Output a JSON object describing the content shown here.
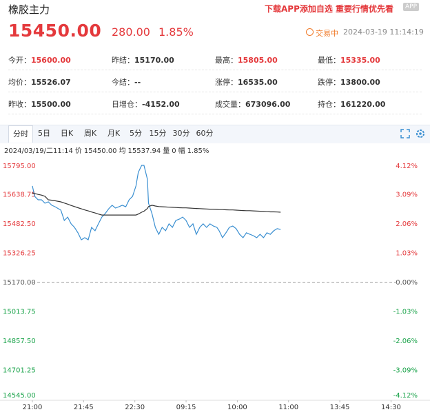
{
  "header": {
    "title": "橡胶主力",
    "promo": "下载APP添加自选 重要行情优先看",
    "badge": "APP"
  },
  "quote": {
    "price": "15450.00",
    "change": "280.00",
    "change_pct": "1.85%",
    "status": "交易中",
    "time": "2024-03-19 11:14:19"
  },
  "stats": [
    [
      {
        "label": "今开：",
        "value": "15600.00",
        "color": "#e4393c"
      },
      {
        "label": "昨结：",
        "value": "15170.00"
      },
      {
        "label": "最高：",
        "value": "15805.00",
        "color": "#e4393c"
      },
      {
        "label": "最低：",
        "value": "15335.00",
        "color": "#e4393c"
      }
    ],
    [
      {
        "label": "均价：",
        "value": "15526.07"
      },
      {
        "label": "今结：",
        "value": "--"
      },
      {
        "label": "涨停：",
        "value": "16535.00"
      },
      {
        "label": "跌停：",
        "value": "13800.00"
      }
    ],
    [
      {
        "label": "昨收：",
        "value": "15500.00"
      },
      {
        "label": "日增仓：",
        "value": "-4152.00"
      },
      {
        "label": "成交量：",
        "value": "673096.00"
      },
      {
        "label": "持仓：",
        "value": "161220.00"
      }
    ]
  ],
  "tabs": [
    "分时",
    "5日",
    "日K",
    "周K",
    "月K",
    "5分",
    "15分",
    "30分",
    "60分"
  ],
  "active_tab": 0,
  "info": [
    "2024/03/19/二11:14",
    "价",
    "15450.00",
    "均",
    "15537.94",
    "量",
    "0",
    "幅",
    "1.85%"
  ],
  "chart_data": {
    "type": "line",
    "x": [
      0,
      2,
      5,
      8,
      11,
      14,
      17,
      20,
      25,
      28,
      31,
      34,
      37,
      40,
      43,
      46,
      49,
      52,
      55,
      58,
      61,
      64,
      67,
      70,
      73,
      76,
      79,
      82,
      85,
      88,
      91,
      93,
      96,
      98,
      101,
      102,
      105,
      108,
      111,
      114,
      117,
      120,
      123,
      126,
      129,
      132,
      135,
      138,
      141,
      144,
      147,
      150,
      153,
      156,
      159,
      162,
      164,
      167,
      170,
      173,
      176,
      179,
      182,
      185,
      188,
      191,
      194,
      197,
      200,
      203,
      206,
      209,
      212,
      215,
      218
    ],
    "xlim": [
      0,
      345
    ],
    "xticks": [
      {
        "value": 0,
        "label": "21:00"
      },
      {
        "value": 45,
        "label": "21:45"
      },
      {
        "value": 90,
        "label": "22:30"
      },
      {
        "value": 135,
        "label": "09:15"
      },
      {
        "value": 180,
        "label": "10:00"
      },
      {
        "value": 225,
        "label": "11:00"
      },
      {
        "value": 270,
        "label": "13:45"
      },
      {
        "value": 315,
        "label": "14:30"
      }
    ],
    "ylim": [
      14545,
      15795
    ],
    "yticks": [
      {
        "value": 15795,
        "label": "15795.00"
      },
      {
        "value": 15638.75,
        "label": "15638.75"
      },
      {
        "value": 15482.5,
        "label": "15482.50"
      },
      {
        "value": 15326.25,
        "label": "15326.25"
      },
      {
        "value": 15170,
        "label": "15170.00"
      },
      {
        "value": 15013.75,
        "label": "15013.75"
      },
      {
        "value": 14857.5,
        "label": "14857.50"
      },
      {
        "value": 14701.25,
        "label": "14701.25"
      },
      {
        "value": 14545,
        "label": "14545.00"
      }
    ],
    "y2lim": [
      -4.12,
      4.12
    ],
    "y2ticks": [
      {
        "value": 4.12,
        "label": "4.12%"
      },
      {
        "value": 3.09,
        "label": "3.09%"
      },
      {
        "value": 2.06,
        "label": "2.06%"
      },
      {
        "value": 1.03,
        "label": "1.03%"
      },
      {
        "value": 0,
        "label": "0.00%"
      },
      {
        "value": -1.03,
        "label": "-1.03%"
      },
      {
        "value": -2.06,
        "label": "-2.06%"
      },
      {
        "value": -3.09,
        "label": "-3.09%"
      },
      {
        "value": -4.12,
        "label": "-4.12%"
      }
    ],
    "up_color": "#e4393c",
    "down_color": "#1aa34a",
    "grid": false,
    "series": [
      {
        "color": "#3a8fd1",
        "values": [
          15685,
          15630,
          15611,
          15611,
          15593,
          15600,
          15582,
          15574,
          15556,
          15501,
          15519,
          15483,
          15464,
          15435,
          15398,
          15409,
          15398,
          15464,
          15446,
          15483,
          15519,
          15538,
          15563,
          15582,
          15567,
          15574,
          15582,
          15574,
          15611,
          15630,
          15685,
          15758,
          15795,
          15795,
          15721,
          15593,
          15538,
          15464,
          15427,
          15464,
          15446,
          15483,
          15464,
          15501,
          15508,
          15519,
          15501,
          15464,
          15483,
          15427,
          15464,
          15483,
          15464,
          15483,
          15471,
          15464,
          15446,
          15409,
          15435,
          15464,
          15471,
          15457,
          15427,
          15409,
          15435,
          15427,
          15420,
          15409,
          15427,
          15409,
          15435,
          15427,
          15446,
          15457,
          15453
        ]
      },
      {
        "color": "#333333",
        "values": [
          15648,
          15645,
          15640,
          15636,
          15630,
          15611,
          15609,
          15606,
          15600,
          15594,
          15588,
          15581,
          15575,
          15569,
          15563,
          15557,
          15552,
          15546,
          15541,
          15535,
          15530,
          15530,
          15530,
          15530,
          15530,
          15530,
          15530,
          15530,
          15530,
          15530,
          15530,
          15535,
          15545,
          15550,
          15565,
          15575,
          15582,
          15578,
          15575,
          15574,
          15573,
          15572,
          15571,
          15570,
          15569,
          15568,
          15568,
          15567,
          15566,
          15565,
          15564,
          15563,
          15562,
          15561,
          15561,
          15560,
          15559,
          15559,
          15558,
          15557,
          15557,
          15556,
          15555,
          15554,
          15553,
          15553,
          15552,
          15551,
          15550,
          15549,
          15548,
          15547,
          15547,
          15546,
          15545
        ]
      }
    ]
  }
}
